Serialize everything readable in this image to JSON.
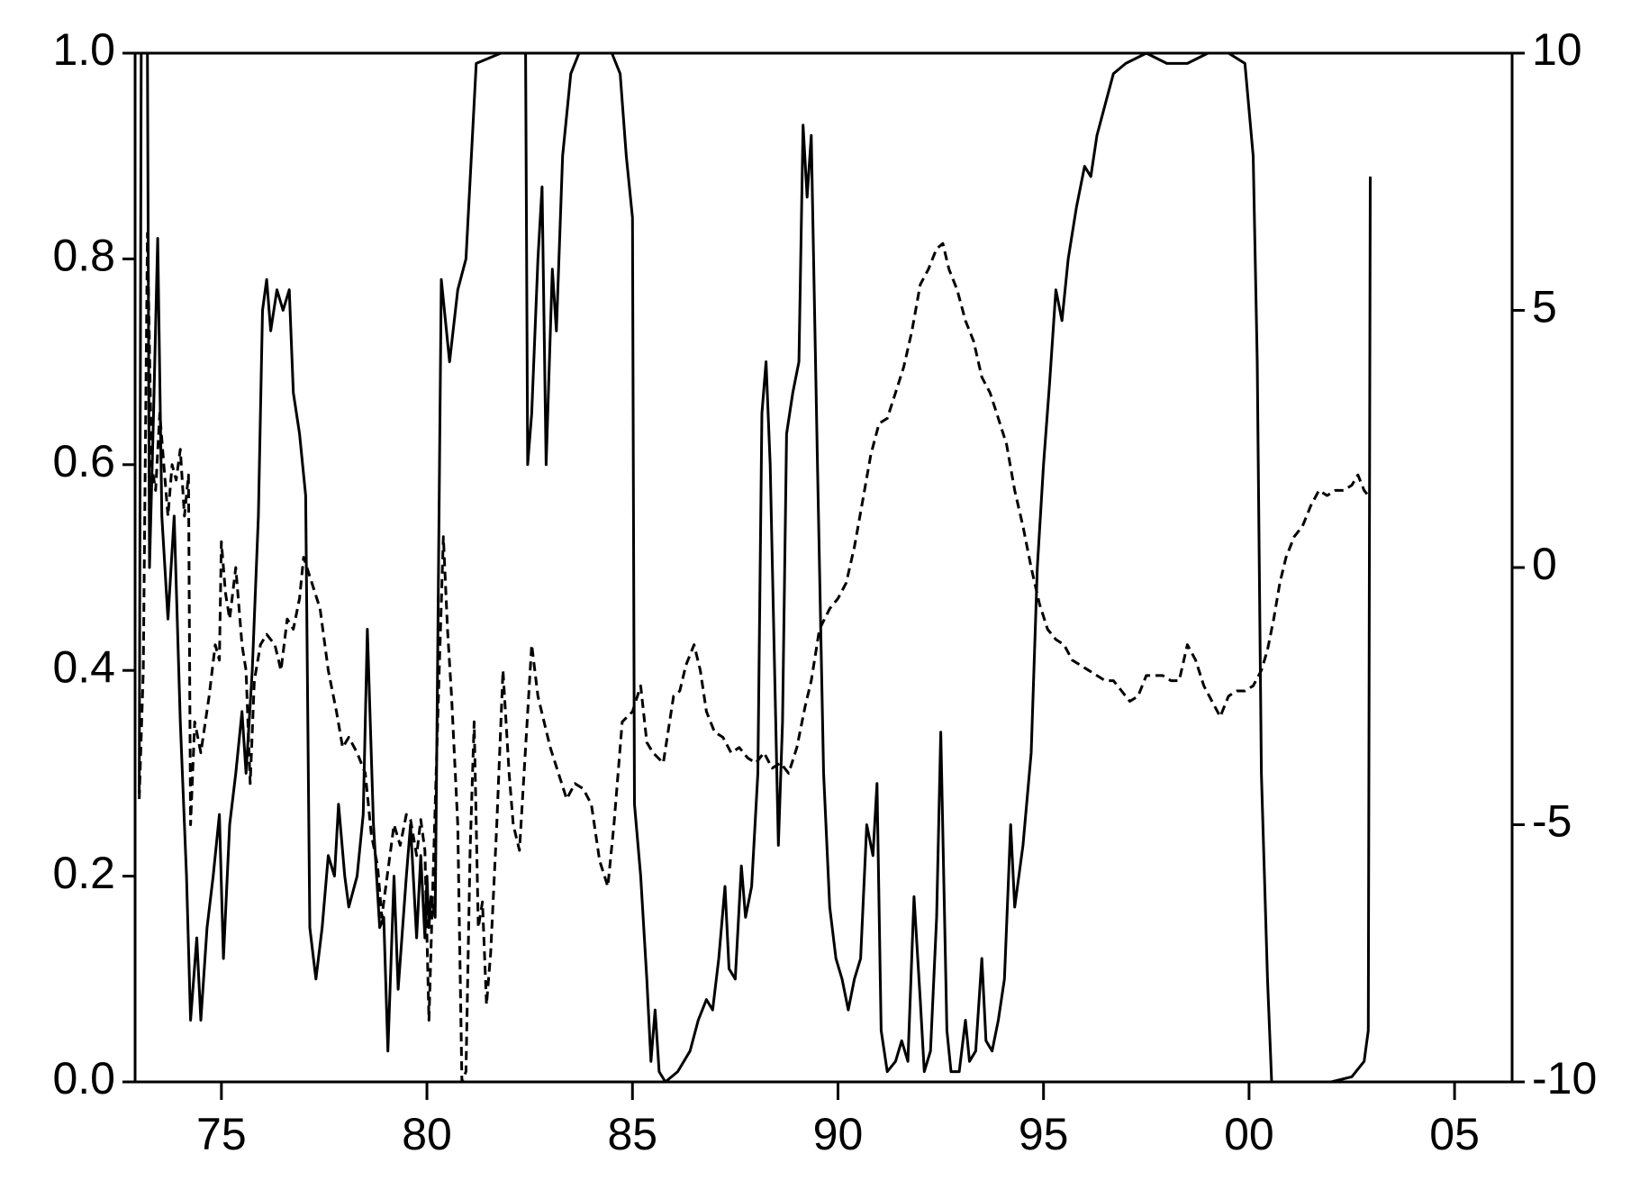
{
  "chart_data": {
    "type": "line",
    "xlim": [
      1972.9,
      2006.4
    ],
    "xticks": [
      {
        "value": 1975,
        "label": "75"
      },
      {
        "value": 1980,
        "label": "80"
      },
      {
        "value": 1985,
        "label": "85"
      },
      {
        "value": 1990,
        "label": "90"
      },
      {
        "value": 1995,
        "label": "95"
      },
      {
        "value": 2000,
        "label": "00"
      },
      {
        "value": 2005,
        "label": "05"
      }
    ],
    "ylim": [
      0,
      1
    ],
    "yticks": [
      {
        "value": 0,
        "label": "0.0"
      },
      0.2,
      0.4,
      0.6,
      0.8,
      {
        "value": 1,
        "label": "1.0"
      }
    ],
    "y2lim": [
      -10,
      10
    ],
    "y2ticks": [
      -10,
      -5,
      0,
      5,
      10
    ],
    "series": [
      {
        "color": "#000000",
        "style": "solid",
        "x": [
          1973.0,
          1973.05,
          1973.2,
          1973.25,
          1973.35,
          1973.45,
          1973.55,
          1973.7,
          1973.85,
          1974.0,
          1974.15,
          1974.25,
          1974.4,
          1974.5,
          1974.65,
          1974.8,
          1974.95,
          1975.05,
          1975.2,
          1975.35,
          1975.5,
          1975.6,
          1975.75,
          1975.9,
          1976.0,
          1976.1,
          1976.2,
          1976.35,
          1976.5,
          1976.65,
          1976.75,
          1976.9,
          1977.05,
          1977.15,
          1977.3,
          1977.45,
          1977.6,
          1977.75,
          1977.85,
          1978.0,
          1978.1,
          1978.3,
          1978.45,
          1978.55,
          1978.7,
          1978.85,
          1978.95,
          1979.05,
          1979.2,
          1979.3,
          1979.5,
          1979.6,
          1979.75,
          1979.85,
          1979.95,
          1980.0,
          1980.05,
          1980.1,
          1980.2,
          1980.35,
          1980.55,
          1980.75,
          1980.95,
          1981.2,
          1981.8,
          1982.2,
          1982.4,
          1982.45,
          1982.55,
          1982.7,
          1982.8,
          1982.9,
          1983.05,
          1983.15,
          1983.3,
          1983.5,
          1983.7,
          1984.2,
          1984.5,
          1984.7,
          1984.85,
          1985.0,
          1985.05,
          1985.2,
          1985.35,
          1985.45,
          1985.55,
          1985.65,
          1985.8,
          1986.1,
          1986.4,
          1986.6,
          1986.8,
          1986.95,
          1987.1,
          1987.25,
          1987.35,
          1987.5,
          1987.65,
          1987.75,
          1987.9,
          1988.05,
          1988.15,
          1988.25,
          1988.35,
          1988.55,
          1988.65,
          1988.75,
          1988.9,
          1989.05,
          1989.15,
          1989.25,
          1989.35,
          1989.5,
          1989.65,
          1989.8,
          1989.95,
          1990.1,
          1990.25,
          1990.4,
          1990.55,
          1990.7,
          1990.85,
          1990.95,
          1991.05,
          1991.2,
          1991.4,
          1991.55,
          1991.7,
          1991.85,
          1992.0,
          1992.1,
          1992.25,
          1992.4,
          1992.5,
          1992.65,
          1992.75,
          1992.95,
          1993.1,
          1993.2,
          1993.35,
          1993.5,
          1993.6,
          1993.75,
          1993.9,
          1994.05,
          1994.2,
          1994.3,
          1994.5,
          1994.7,
          1994.85,
          1995.0,
          1995.15,
          1995.3,
          1995.45,
          1995.6,
          1995.8,
          1996.0,
          1996.15,
          1996.3,
          1996.5,
          1996.7,
          1997.0,
          1997.5,
          1998.0,
          1998.5,
          1999.0,
          1999.5,
          1999.9,
          2000.1,
          2000.2,
          2000.3,
          2000.45,
          2000.55,
          2001.0,
          2002.0,
          2002.5,
          2002.8,
          2002.9,
          2002.95
        ],
        "values": [
          0.28,
          1.0,
          1.0,
          0.5,
          0.65,
          0.82,
          0.55,
          0.45,
          0.55,
          0.35,
          0.2,
          0.06,
          0.14,
          0.06,
          0.15,
          0.2,
          0.26,
          0.12,
          0.25,
          0.3,
          0.36,
          0.3,
          0.4,
          0.55,
          0.75,
          0.78,
          0.73,
          0.77,
          0.75,
          0.77,
          0.67,
          0.63,
          0.57,
          0.15,
          0.1,
          0.15,
          0.22,
          0.2,
          0.27,
          0.2,
          0.17,
          0.2,
          0.26,
          0.44,
          0.25,
          0.15,
          0.16,
          0.03,
          0.2,
          0.09,
          0.2,
          0.25,
          0.14,
          0.22,
          0.14,
          0.2,
          0.15,
          0.18,
          0.16,
          0.78,
          0.7,
          0.77,
          0.8,
          0.99,
          1.0,
          1.0,
          1.0,
          0.6,
          0.65,
          0.8,
          0.87,
          0.6,
          0.79,
          0.73,
          0.9,
          0.98,
          1.0,
          1.0,
          1.0,
          0.98,
          0.9,
          0.84,
          0.27,
          0.2,
          0.1,
          0.02,
          0.07,
          0.01,
          0.0,
          0.01,
          0.03,
          0.06,
          0.08,
          0.07,
          0.12,
          0.19,
          0.11,
          0.1,
          0.21,
          0.16,
          0.19,
          0.3,
          0.65,
          0.7,
          0.6,
          0.23,
          0.35,
          0.63,
          0.67,
          0.7,
          0.93,
          0.86,
          0.92,
          0.6,
          0.3,
          0.17,
          0.12,
          0.1,
          0.07,
          0.1,
          0.12,
          0.25,
          0.22,
          0.29,
          0.05,
          0.01,
          0.02,
          0.04,
          0.02,
          0.18,
          0.08,
          0.01,
          0.03,
          0.16,
          0.34,
          0.05,
          0.01,
          0.01,
          0.06,
          0.02,
          0.03,
          0.12,
          0.04,
          0.03,
          0.06,
          0.1,
          0.25,
          0.17,
          0.23,
          0.32,
          0.5,
          0.6,
          0.68,
          0.77,
          0.74,
          0.8,
          0.85,
          0.89,
          0.88,
          0.92,
          0.95,
          0.98,
          0.99,
          1.0,
          0.99,
          0.99,
          1.0,
          1.0,
          0.99,
          0.9,
          0.7,
          0.3,
          0.1,
          0.0,
          0.0,
          0.0,
          0.005,
          0.02,
          0.05,
          0.88
        ]
      },
      {
        "color": "#000000",
        "style": "dashed",
        "axis": "y2",
        "x": [
          1973.0,
          1973.1,
          1973.2,
          1973.3,
          1973.4,
          1973.5,
          1973.6,
          1973.7,
          1973.8,
          1973.9,
          1974.0,
          1974.1,
          1974.2,
          1974.25,
          1974.35,
          1974.5,
          1974.7,
          1974.85,
          1974.95,
          1975.0,
          1975.1,
          1975.2,
          1975.35,
          1975.5,
          1975.6,
          1975.7,
          1975.8,
          1975.95,
          1976.1,
          1976.3,
          1976.45,
          1976.6,
          1976.75,
          1976.9,
          1977.0,
          1977.2,
          1977.4,
          1977.6,
          1977.8,
          1977.95,
          1978.1,
          1978.3,
          1978.5,
          1978.65,
          1978.8,
          1978.9,
          1979.0,
          1979.2,
          1979.35,
          1979.5,
          1979.6,
          1979.75,
          1979.85,
          1979.95,
          1980.05,
          1980.15,
          1980.3,
          1980.4,
          1980.5,
          1980.6,
          1980.75,
          1980.85,
          1980.95,
          1981.05,
          1981.15,
          1981.25,
          1981.35,
          1981.45,
          1981.55,
          1981.7,
          1981.85,
          1982.0,
          1982.1,
          1982.25,
          1982.4,
          1982.55,
          1982.7,
          1982.85,
          1983.0,
          1983.2,
          1983.4,
          1983.6,
          1983.8,
          1984.0,
          1984.2,
          1984.4,
          1984.55,
          1984.75,
          1985.0,
          1985.2,
          1985.35,
          1985.5,
          1985.75,
          1986.0,
          1986.15,
          1986.3,
          1986.5,
          1986.65,
          1986.8,
          1987.0,
          1987.2,
          1987.4,
          1987.6,
          1987.8,
          1988.0,
          1988.2,
          1988.4,
          1988.6,
          1988.8,
          1989.0,
          1989.2,
          1989.35,
          1989.55,
          1989.8,
          1990.0,
          1990.2,
          1990.4,
          1990.6,
          1990.8,
          1991.0,
          1991.2,
          1991.4,
          1991.6,
          1991.8,
          1992.0,
          1992.2,
          1992.4,
          1992.55,
          1992.7,
          1992.9,
          1993.1,
          1993.3,
          1993.5,
          1993.7,
          1993.9,
          1994.1,
          1994.3,
          1994.5,
          1994.7,
          1994.9,
          1995.1,
          1995.3,
          1995.5,
          1995.7,
          1995.9,
          1996.1,
          1996.3,
          1996.5,
          1996.7,
          1996.9,
          1997.1,
          1997.3,
          1997.5,
          1997.7,
          1997.9,
          1998.1,
          1998.3,
          1998.5,
          1998.7,
          1998.9,
          1999.1,
          1999.3,
          1999.5,
          1999.7,
          1999.9,
          2000.1,
          2000.3,
          2000.45,
          2000.6,
          2000.75,
          2000.9,
          2001.1,
          2001.3,
          2001.5,
          2001.7,
          2001.9,
          2002.1,
          2002.3,
          2002.5,
          2002.65,
          2002.8,
          2002.9
        ],
        "values": [
          -4.5,
          -2,
          6.5,
          2,
          1.5,
          3,
          2,
          1,
          2,
          1.7,
          2.3,
          1,
          1.8,
          -5,
          -3,
          -3.6,
          -2.5,
          -1.5,
          -1.8,
          0.5,
          -0.5,
          -1,
          0,
          -1.5,
          -2,
          -4.2,
          -2.2,
          -1.5,
          -1.3,
          -1.5,
          -2,
          -1,
          -1.2,
          -0.6,
          0.2,
          -0.3,
          -0.8,
          -2,
          -2.8,
          -3.5,
          -3.3,
          -3.6,
          -4,
          -5.2,
          -5.8,
          -6.8,
          -6.2,
          -5,
          -5.4,
          -4.8,
          -4.9,
          -5.6,
          -4.9,
          -5.5,
          -8.8,
          -6,
          -2,
          0.6,
          -1.2,
          -2.5,
          -5,
          -10,
          -9.8,
          -5.5,
          -3,
          -7,
          -6.5,
          -8.5,
          -7.5,
          -5,
          -2,
          -4,
          -5,
          -5.5,
          -3.5,
          -1.5,
          -2.5,
          -3,
          -3.5,
          -4,
          -4.5,
          -4.2,
          -4.3,
          -4.6,
          -5.7,
          -6.2,
          -5,
          -3,
          -2.8,
          -2.3,
          -3.4,
          -3.6,
          -3.8,
          -2.5,
          -2.4,
          -1.9,
          -1.5,
          -2,
          -2.8,
          -3.2,
          -3.3,
          -3.6,
          -3.5,
          -3.7,
          -3.8,
          -3.6,
          -3.9,
          -3.8,
          -4,
          -3.5,
          -2.7,
          -2.2,
          -1.2,
          -0.8,
          -0.6,
          -0.3,
          0.4,
          1.3,
          2.2,
          2.8,
          2.9,
          3.4,
          3.9,
          4.6,
          5.5,
          5.8,
          6.2,
          6.3,
          5.8,
          5.4,
          4.8,
          4.4,
          3.7,
          3.4,
          2.9,
          2.4,
          1.5,
          0.8,
          0,
          -0.7,
          -1.2,
          -1.4,
          -1.5,
          -1.8,
          -1.9,
          -2,
          -2.1,
          -2.2,
          -2.2,
          -2.4,
          -2.6,
          -2.5,
          -2.1,
          -2.1,
          -2.1,
          -2.2,
          -2.2,
          -1.5,
          -1.8,
          -2.3,
          -2.6,
          -2.9,
          -2.5,
          -2.4,
          -2.4,
          -2.3,
          -2,
          -1.6,
          -1,
          -0.3,
          0.2,
          0.6,
          0.8,
          1.2,
          1.5,
          1.4,
          1.5,
          1.5,
          1.6,
          1.8,
          1.5,
          1.4
        ]
      }
    ]
  }
}
